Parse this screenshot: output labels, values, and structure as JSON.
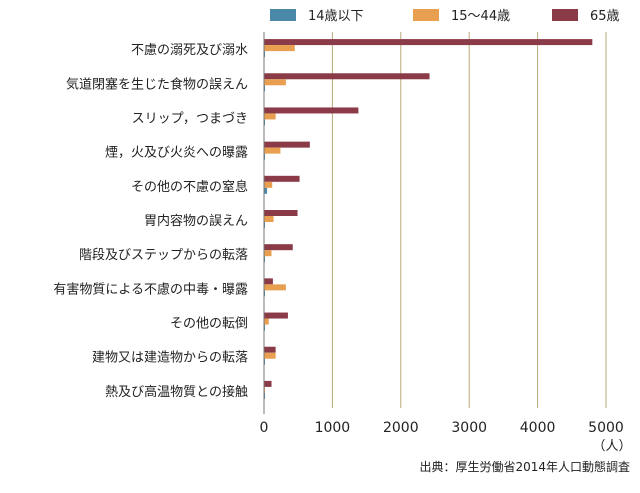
{
  "chart_data": {
    "type": "bar",
    "orientation": "horizontal",
    "categories": [
      "不慮の溺死及び溺水",
      "気道閉塞を生じた食物の誤えん",
      "スリップ，つまづき",
      "煙，火及び火炎への曝露",
      "その他の不慮の窒息",
      "胃内容物の誤えん",
      "階段及びステップからの転落",
      "有害物質による不慮の中毒・曝露",
      "その他の転倒",
      "建物又は建造物からの転落",
      "熱及び高温物質との接触"
    ],
    "series": [
      {
        "name": "14歳以下",
        "color": "#4a8aa8",
        "values": [
          15,
          5,
          5,
          10,
          45,
          5,
          5,
          10,
          5,
          10,
          5
        ]
      },
      {
        "name": "15〜44歳",
        "color": "#e8a050",
        "values": [
          450,
          320,
          170,
          240,
          120,
          140,
          110,
          320,
          70,
          170,
          10
        ]
      },
      {
        "name": "65歳",
        "color": "#8b3a48",
        "values": [
          4800,
          2420,
          1380,
          670,
          520,
          490,
          420,
          130,
          350,
          170,
          110
        ]
      }
    ],
    "xlim": [
      0,
      5000
    ],
    "xticks": [
      "0",
      "1000",
      "2000",
      "3000",
      "4000",
      "5000"
    ],
    "unit_label": "（人）",
    "gridline_color": "#b8a878",
    "legend_position": "top",
    "source": "出典：厚生労働省2014年人口動態調査"
  }
}
